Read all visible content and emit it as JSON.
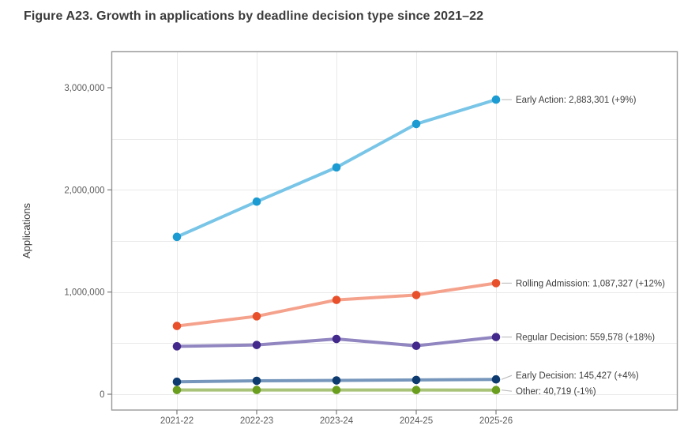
{
  "title": "Figure A23. Growth in applications by deadline decision type since 2021–22",
  "colors": {
    "panel_border": "#999999",
    "grid": "#e9e9e9",
    "leader_line": "#bcbcbc",
    "title_text": "#3b3b3b",
    "tick_text": "#5c5c5c",
    "label_text": "#3e3e3e",
    "axis_title_text": "#3a3a3a"
  },
  "chart_data": {
    "type": "line",
    "title": "Figure A23. Growth in applications by deadline decision type since 2021–22",
    "xlabel": "",
    "ylabel": "Applications",
    "x_categories": [
      "2021-22",
      "2022-23",
      "2023-24",
      "2024-25",
      "2025-26"
    ],
    "ylim": [
      0,
      3200000
    ],
    "grid_interval": 500000,
    "legend_position": "end-of-line-labels",
    "yticks": [
      {
        "value": 0,
        "label": "0"
      },
      {
        "value": 1000000,
        "label": "1,000,000"
      },
      {
        "value": 2000000,
        "label": "2,000,000"
      },
      {
        "value": 3000000,
        "label": "3,000,000"
      }
    ],
    "series": [
      {
        "name": "Early Action",
        "values": [
          1540000,
          1885000,
          2220000,
          2645000,
          2883301
        ],
        "final_value": 2883301,
        "pct_change": "+9%",
        "end_label": "Early Action: 2,883,301 (+9%)",
        "marker_color": "#1b9bd1",
        "line_color": "#79c5e7"
      },
      {
        "name": "Rolling Admission",
        "values": [
          668000,
          763000,
          923000,
          971000,
          1087327
        ],
        "final_value": 1087327,
        "pct_change": "+12%",
        "end_label": "Rolling Admission: 1,087,327 (+12%)",
        "marker_color": "#e8502b",
        "line_color": "#f5a28d"
      },
      {
        "name": "Regular Decision",
        "values": [
          469000,
          482000,
          541000,
          474000,
          559578
        ],
        "final_value": 559578,
        "pct_change": "+18%",
        "end_label": "Regular Decision: 559,578 (+18%)",
        "marker_color": "#43298c",
        "line_color": "#9186c0"
      },
      {
        "name": "Early Decision",
        "values": [
          122000,
          131000,
          135000,
          139800,
          145427
        ],
        "final_value": 145427,
        "pct_change": "+4%",
        "end_label": "Early Decision: 145,427 (+4%)",
        "marker_color": "#0d3b70",
        "line_color": "#7696bb"
      },
      {
        "name": "Other",
        "values": [
          41100,
          41800,
          41500,
          41100,
          40719
        ],
        "final_value": 40719,
        "pct_change": "-1%",
        "end_label": "Other: 40,719 (-1%)",
        "marker_color": "#6a9e1f",
        "line_color": "#a9c379"
      }
    ]
  }
}
